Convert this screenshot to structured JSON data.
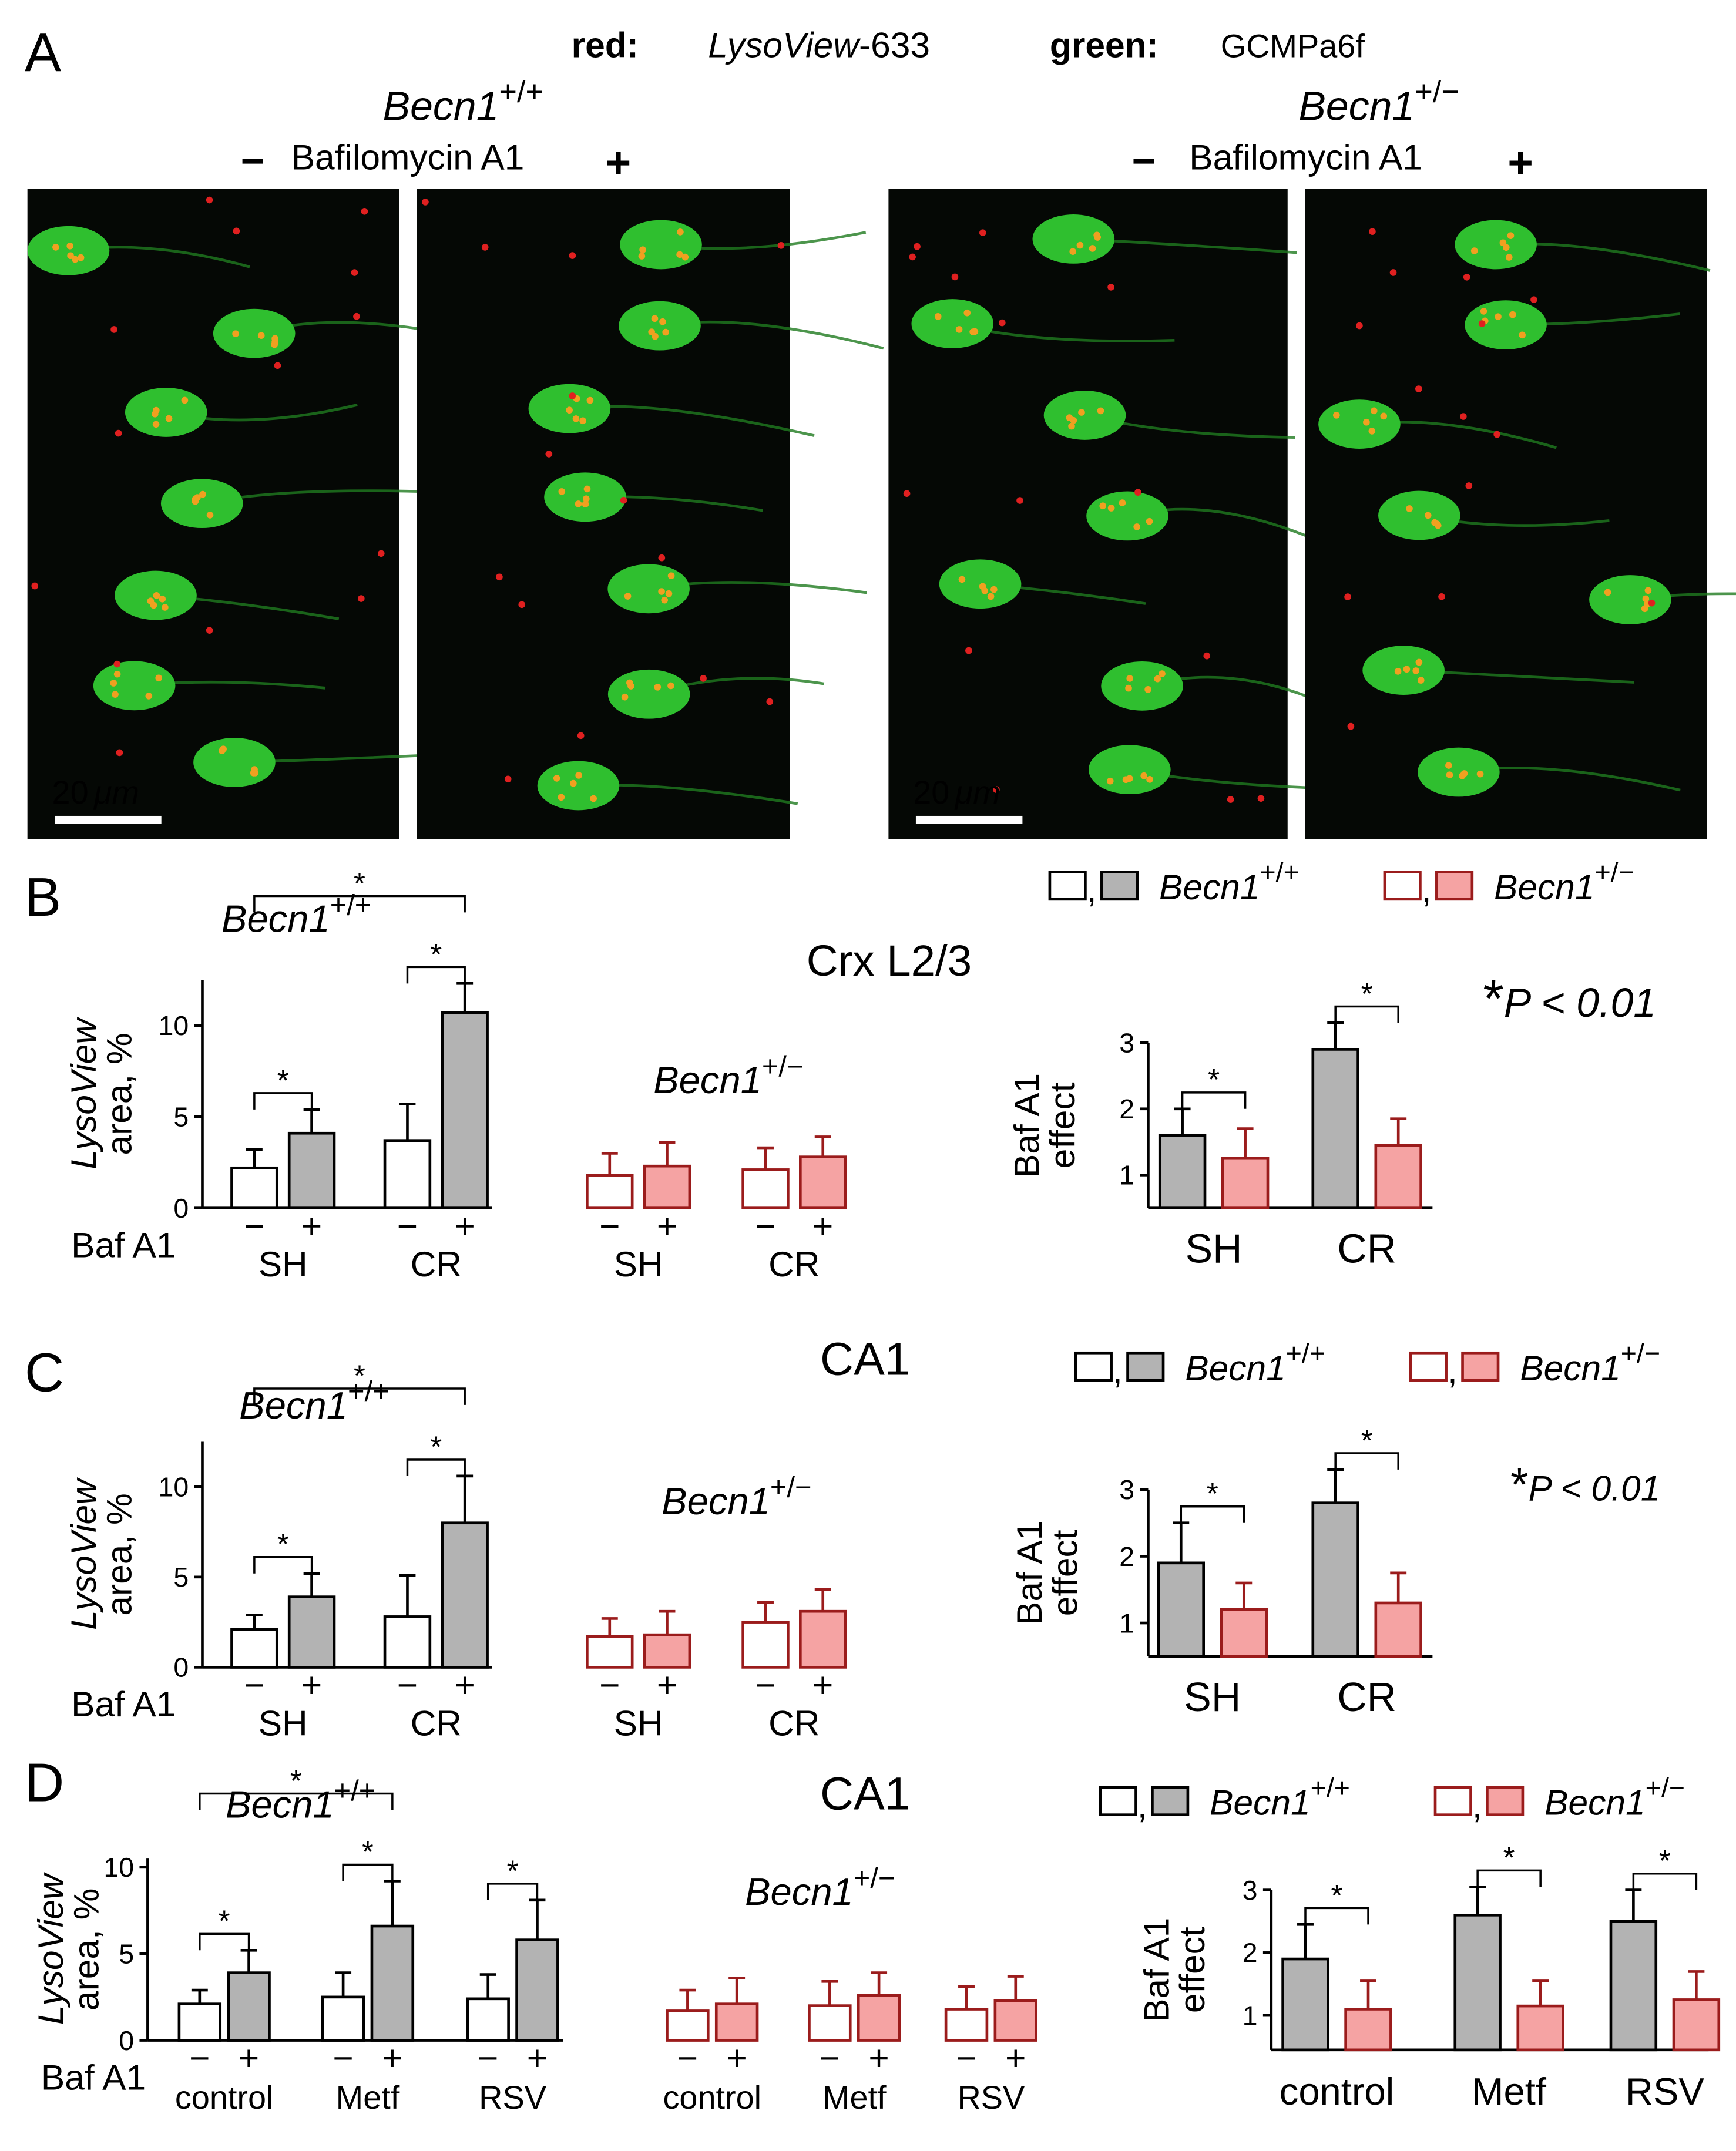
{
  "panel_a": {
    "label": "A",
    "red_key": "red:",
    "red_dye": "LysoView",
    "red_dye_suffix": "-633",
    "green_key": "green:",
    "green_dye": "GCMPa6f",
    "scale_value": "20",
    "scale_unit": "μm",
    "groups": [
      {
        "gene": "Becn1",
        "genotype": "+/+",
        "minus": "−",
        "drug": "Bafilomycin A1",
        "plus": "+"
      },
      {
        "gene": "Becn1",
        "genotype": "+/−",
        "minus": "−",
        "drug": "Bafilomycin A1",
        "plus": "+"
      }
    ]
  },
  "panels": [
    {
      "label": "B",
      "title": "Crx L2/3",
      "note_star": "*",
      "note": "P < 0.01",
      "wt": {
        "gene": "Becn1",
        "sup": "+/+"
      },
      "het": {
        "gene": "Becn1",
        "sup": "+/−"
      },
      "legend": [
        {
          "name": "Becn1",
          "sup": "+/+",
          "fills": [
            "#ffffff",
            "#b3b3b3"
          ],
          "stroke": "#000000"
        },
        {
          "name": "Becn1",
          "sup": "+/−",
          "fills": [
            "#ffffff",
            "#f5a3a3"
          ],
          "stroke": "#9b1c1c"
        }
      ]
    },
    {
      "label": "C",
      "title": "CA1",
      "note_star": "*",
      "note": "P < 0.01",
      "wt": {
        "gene": "Becn1",
        "sup": "+/+"
      },
      "het": {
        "gene": "Becn1",
        "sup": "+/−"
      },
      "legend": [
        {
          "name": "Becn1",
          "sup": "+/+",
          "fills": [
            "#ffffff",
            "#b3b3b3"
          ],
          "stroke": "#000000"
        },
        {
          "name": "Becn1",
          "sup": "+/−",
          "fills": [
            "#ffffff",
            "#f5a3a3"
          ],
          "stroke": "#9b1c1c"
        }
      ]
    },
    {
      "label": "D",
      "title": "CA1",
      "wt": {
        "gene": "Becn1",
        "sup": "+/+"
      },
      "het": {
        "gene": "Becn1",
        "sup": "+/−"
      },
      "legend": [
        {
          "name": "Becn1",
          "sup": "+/+",
          "fills": [
            "#ffffff",
            "#b3b3b3"
          ],
          "stroke": "#000000"
        },
        {
          "name": "Becn1",
          "sup": "+/−",
          "fills": [
            "#ffffff",
            "#f5a3a3"
          ],
          "stroke": "#9b1c1c"
        }
      ]
    }
  ],
  "chart_data": [
    {
      "type": "bar",
      "ylabel": [
        "LysoView",
        "area, %"
      ],
      "row_label": "Baf A1",
      "ylim": [
        0,
        12.5
      ],
      "yticks": [
        0,
        5,
        10
      ],
      "bar_labels": [
        "−",
        "+",
        "−",
        "+",
        "−",
        "+",
        "−",
        "+"
      ],
      "groups": [
        "SH",
        "CR",
        "SH",
        "CR"
      ],
      "group_size": 2,
      "values": [
        2.2,
        4.1,
        3.7,
        10.7,
        1.8,
        2.3,
        2.1,
        2.8
      ],
      "errors": [
        1.0,
        1.3,
        2.0,
        1.6,
        1.2,
        1.3,
        1.2,
        1.1
      ],
      "fills": [
        "#ffffff",
        "#b3b3b3",
        "#ffffff",
        "#b3b3b3",
        "#ffffff",
        "#f5a3a3",
        "#ffffff",
        "#f5a3a3"
      ],
      "strokes": [
        "#000000",
        "#000000",
        "#000000",
        "#000000",
        "#9b1c1c",
        "#9b1c1c",
        "#9b1c1c",
        "#9b1c1c"
      ],
      "brackets": [
        {
          "from": 0,
          "to": 1,
          "label": "*"
        },
        {
          "from": 2,
          "to": 3,
          "label": "*"
        },
        {
          "from": 0,
          "to": 3,
          "label": "*"
        }
      ]
    },
    {
      "type": "bar",
      "ylabel": [
        "Baf A1",
        "effect"
      ],
      "ylim": [
        0.5,
        3
      ],
      "yticks": [
        1,
        2,
        3
      ],
      "groups": [
        "SH",
        "CR"
      ],
      "group_size": 2,
      "values": [
        1.6,
        1.25,
        2.9,
        1.45
      ],
      "errors": [
        0.4,
        0.45,
        0.4,
        0.4
      ],
      "fills": [
        "#b3b3b3",
        "#f5a3a3",
        "#b3b3b3",
        "#f5a3a3"
      ],
      "strokes": [
        "#000000",
        "#9b1c1c",
        "#000000",
        "#9b1c1c"
      ],
      "brackets": [
        {
          "from": 0,
          "to": 1,
          "label": "*"
        },
        {
          "from": 2,
          "to": 3,
          "label": "*"
        }
      ]
    },
    {
      "type": "bar",
      "ylabel": [
        "LysoView",
        "area, %"
      ],
      "row_label": "Baf A1",
      "ylim": [
        0,
        12.5
      ],
      "yticks": [
        0,
        5,
        10
      ],
      "bar_labels": [
        "−",
        "+",
        "−",
        "+",
        "−",
        "+",
        "−",
        "+"
      ],
      "groups": [
        "SH",
        "CR",
        "SH",
        "CR"
      ],
      "group_size": 2,
      "values": [
        2.1,
        3.9,
        2.8,
        8.0,
        1.7,
        1.8,
        2.5,
        3.1
      ],
      "errors": [
        0.8,
        1.3,
        2.3,
        2.6,
        1.0,
        1.3,
        1.1,
        1.2
      ],
      "fills": [
        "#ffffff",
        "#b3b3b3",
        "#ffffff",
        "#b3b3b3",
        "#ffffff",
        "#f5a3a3",
        "#ffffff",
        "#f5a3a3"
      ],
      "strokes": [
        "#000000",
        "#000000",
        "#000000",
        "#000000",
        "#9b1c1c",
        "#9b1c1c",
        "#9b1c1c",
        "#9b1c1c"
      ],
      "brackets": [
        {
          "from": 0,
          "to": 1,
          "label": "*"
        },
        {
          "from": 2,
          "to": 3,
          "label": "*"
        },
        {
          "from": 0,
          "to": 3,
          "label": "*"
        }
      ]
    },
    {
      "type": "bar",
      "ylabel": [
        "Baf A1",
        "effect"
      ],
      "ylim": [
        0.5,
        3
      ],
      "yticks": [
        1,
        2,
        3
      ],
      "groups": [
        "SH",
        "CR"
      ],
      "group_size": 2,
      "values": [
        1.9,
        1.2,
        2.8,
        1.3
      ],
      "errors": [
        0.6,
        0.4,
        0.5,
        0.45
      ],
      "fills": [
        "#b3b3b3",
        "#f5a3a3",
        "#b3b3b3",
        "#f5a3a3"
      ],
      "strokes": [
        "#000000",
        "#9b1c1c",
        "#000000",
        "#9b1c1c"
      ],
      "brackets": [
        {
          "from": 0,
          "to": 1,
          "label": "*"
        },
        {
          "from": 2,
          "to": 3,
          "label": "*"
        }
      ]
    },
    {
      "type": "bar",
      "ylabel": [
        "LysoView",
        "area, %"
      ],
      "row_label": "Baf A1",
      "ylim": [
        0,
        10.5
      ],
      "yticks": [
        0,
        5,
        10
      ],
      "bar_labels": [
        "−",
        "+",
        "−",
        "+",
        "−",
        "+",
        "−",
        "+",
        "−",
        "+",
        "−",
        "+"
      ],
      "groups": [
        "control",
        "Metf",
        "RSV",
        "control",
        "Metf",
        "RSV"
      ],
      "group_size": 2,
      "values": [
        2.1,
        3.9,
        2.5,
        6.6,
        2.4,
        5.8,
        1.7,
        2.1,
        2.0,
        2.6,
        1.8,
        2.3
      ],
      "errors": [
        0.8,
        1.3,
        1.4,
        2.6,
        1.4,
        2.3,
        1.2,
        1.5,
        1.4,
        1.3,
        1.3,
        1.4
      ],
      "fills": [
        "#ffffff",
        "#b3b3b3",
        "#ffffff",
        "#b3b3b3",
        "#ffffff",
        "#b3b3b3",
        "#ffffff",
        "#f5a3a3",
        "#ffffff",
        "#f5a3a3",
        "#ffffff",
        "#f5a3a3"
      ],
      "strokes": [
        "#000000",
        "#000000",
        "#000000",
        "#000000",
        "#000000",
        "#000000",
        "#9b1c1c",
        "#9b1c1c",
        "#9b1c1c",
        "#9b1c1c",
        "#9b1c1c",
        "#9b1c1c"
      ],
      "brackets": [
        {
          "from": 0,
          "to": 1,
          "label": "*"
        },
        {
          "from": 2,
          "to": 3,
          "label": "*"
        },
        {
          "from": 4,
          "to": 5,
          "label": "*"
        },
        {
          "from": 0,
          "to": 3,
          "label": "*"
        }
      ]
    },
    {
      "type": "bar",
      "ylabel": [
        "Baf A1",
        "effect"
      ],
      "ylim": [
        0.45,
        3
      ],
      "yticks": [
        1,
        2,
        3
      ],
      "groups": [
        "control",
        "Metf",
        "RSV"
      ],
      "group_size": 2,
      "values": [
        1.9,
        1.1,
        2.6,
        1.15,
        2.5,
        1.25
      ],
      "errors": [
        0.55,
        0.45,
        0.45,
        0.4,
        0.5,
        0.45
      ],
      "fills": [
        "#b3b3b3",
        "#f5a3a3",
        "#b3b3b3",
        "#f5a3a3",
        "#b3b3b3",
        "#f5a3a3"
      ],
      "strokes": [
        "#000000",
        "#9b1c1c",
        "#000000",
        "#9b1c1c",
        "#000000",
        "#9b1c1c"
      ],
      "brackets": [
        {
          "from": 0,
          "to": 1,
          "label": "*"
        },
        {
          "from": 2,
          "to": 3,
          "label": "*"
        },
        {
          "from": 4,
          "to": 5,
          "label": "*"
        }
      ]
    }
  ]
}
